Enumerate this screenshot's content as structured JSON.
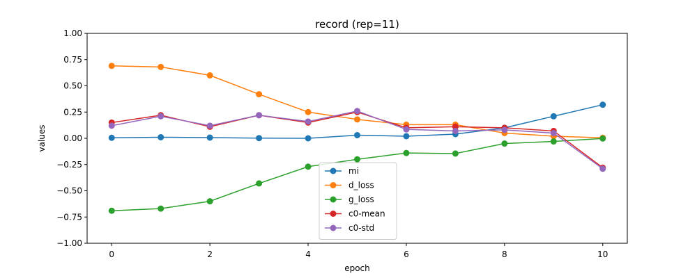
{
  "chart_data": {
    "type": "line",
    "title": "record (rep=11)",
    "xlabel": "epoch",
    "ylabel": "values",
    "xlim": [
      -0.5,
      10.5
    ],
    "ylim": [
      -1.0,
      1.0
    ],
    "xticks": [
      0,
      2,
      4,
      6,
      8,
      10
    ],
    "xtick_labels": [
      "0",
      "2",
      "4",
      "6",
      "8",
      "10"
    ],
    "yticks": [
      -1.0,
      -0.75,
      -0.5,
      -0.25,
      0.0,
      0.25,
      0.5,
      0.75,
      1.0
    ],
    "ytick_labels": [
      "−1.00",
      "−0.75",
      "−0.50",
      "−0.25",
      "0.00",
      "0.25",
      "0.50",
      "0.75",
      "1.00"
    ],
    "grid": false,
    "legend_position": "lower-center",
    "x": [
      0,
      1,
      2,
      3,
      4,
      5,
      6,
      7,
      8,
      9,
      10
    ],
    "series": [
      {
        "name": "mi",
        "color": "#1f77b4",
        "values": [
          0.005,
          0.01,
          0.007,
          0.002,
          0.0,
          0.03,
          0.02,
          0.04,
          0.1,
          0.21,
          0.32
        ]
      },
      {
        "name": "d_loss",
        "color": "#ff7f0e",
        "values": [
          0.69,
          0.68,
          0.6,
          0.42,
          0.25,
          0.18,
          0.13,
          0.13,
          0.05,
          0.02,
          0.005
        ]
      },
      {
        "name": "g_loss",
        "color": "#2ca02c",
        "values": [
          -0.69,
          -0.67,
          -0.6,
          -0.43,
          -0.27,
          -0.2,
          -0.14,
          -0.145,
          -0.05,
          -0.03,
          -0.002
        ]
      },
      {
        "name": "c0-mean",
        "color": "#d62728",
        "values": [
          0.15,
          0.22,
          0.11,
          0.22,
          0.15,
          0.25,
          0.1,
          0.11,
          0.1,
          0.07,
          -0.28
        ]
      },
      {
        "name": "c0-std",
        "color": "#9467bd",
        "values": [
          0.12,
          0.21,
          0.12,
          0.22,
          0.16,
          0.26,
          0.085,
          0.07,
          0.08,
          0.05,
          -0.29
        ]
      }
    ]
  }
}
